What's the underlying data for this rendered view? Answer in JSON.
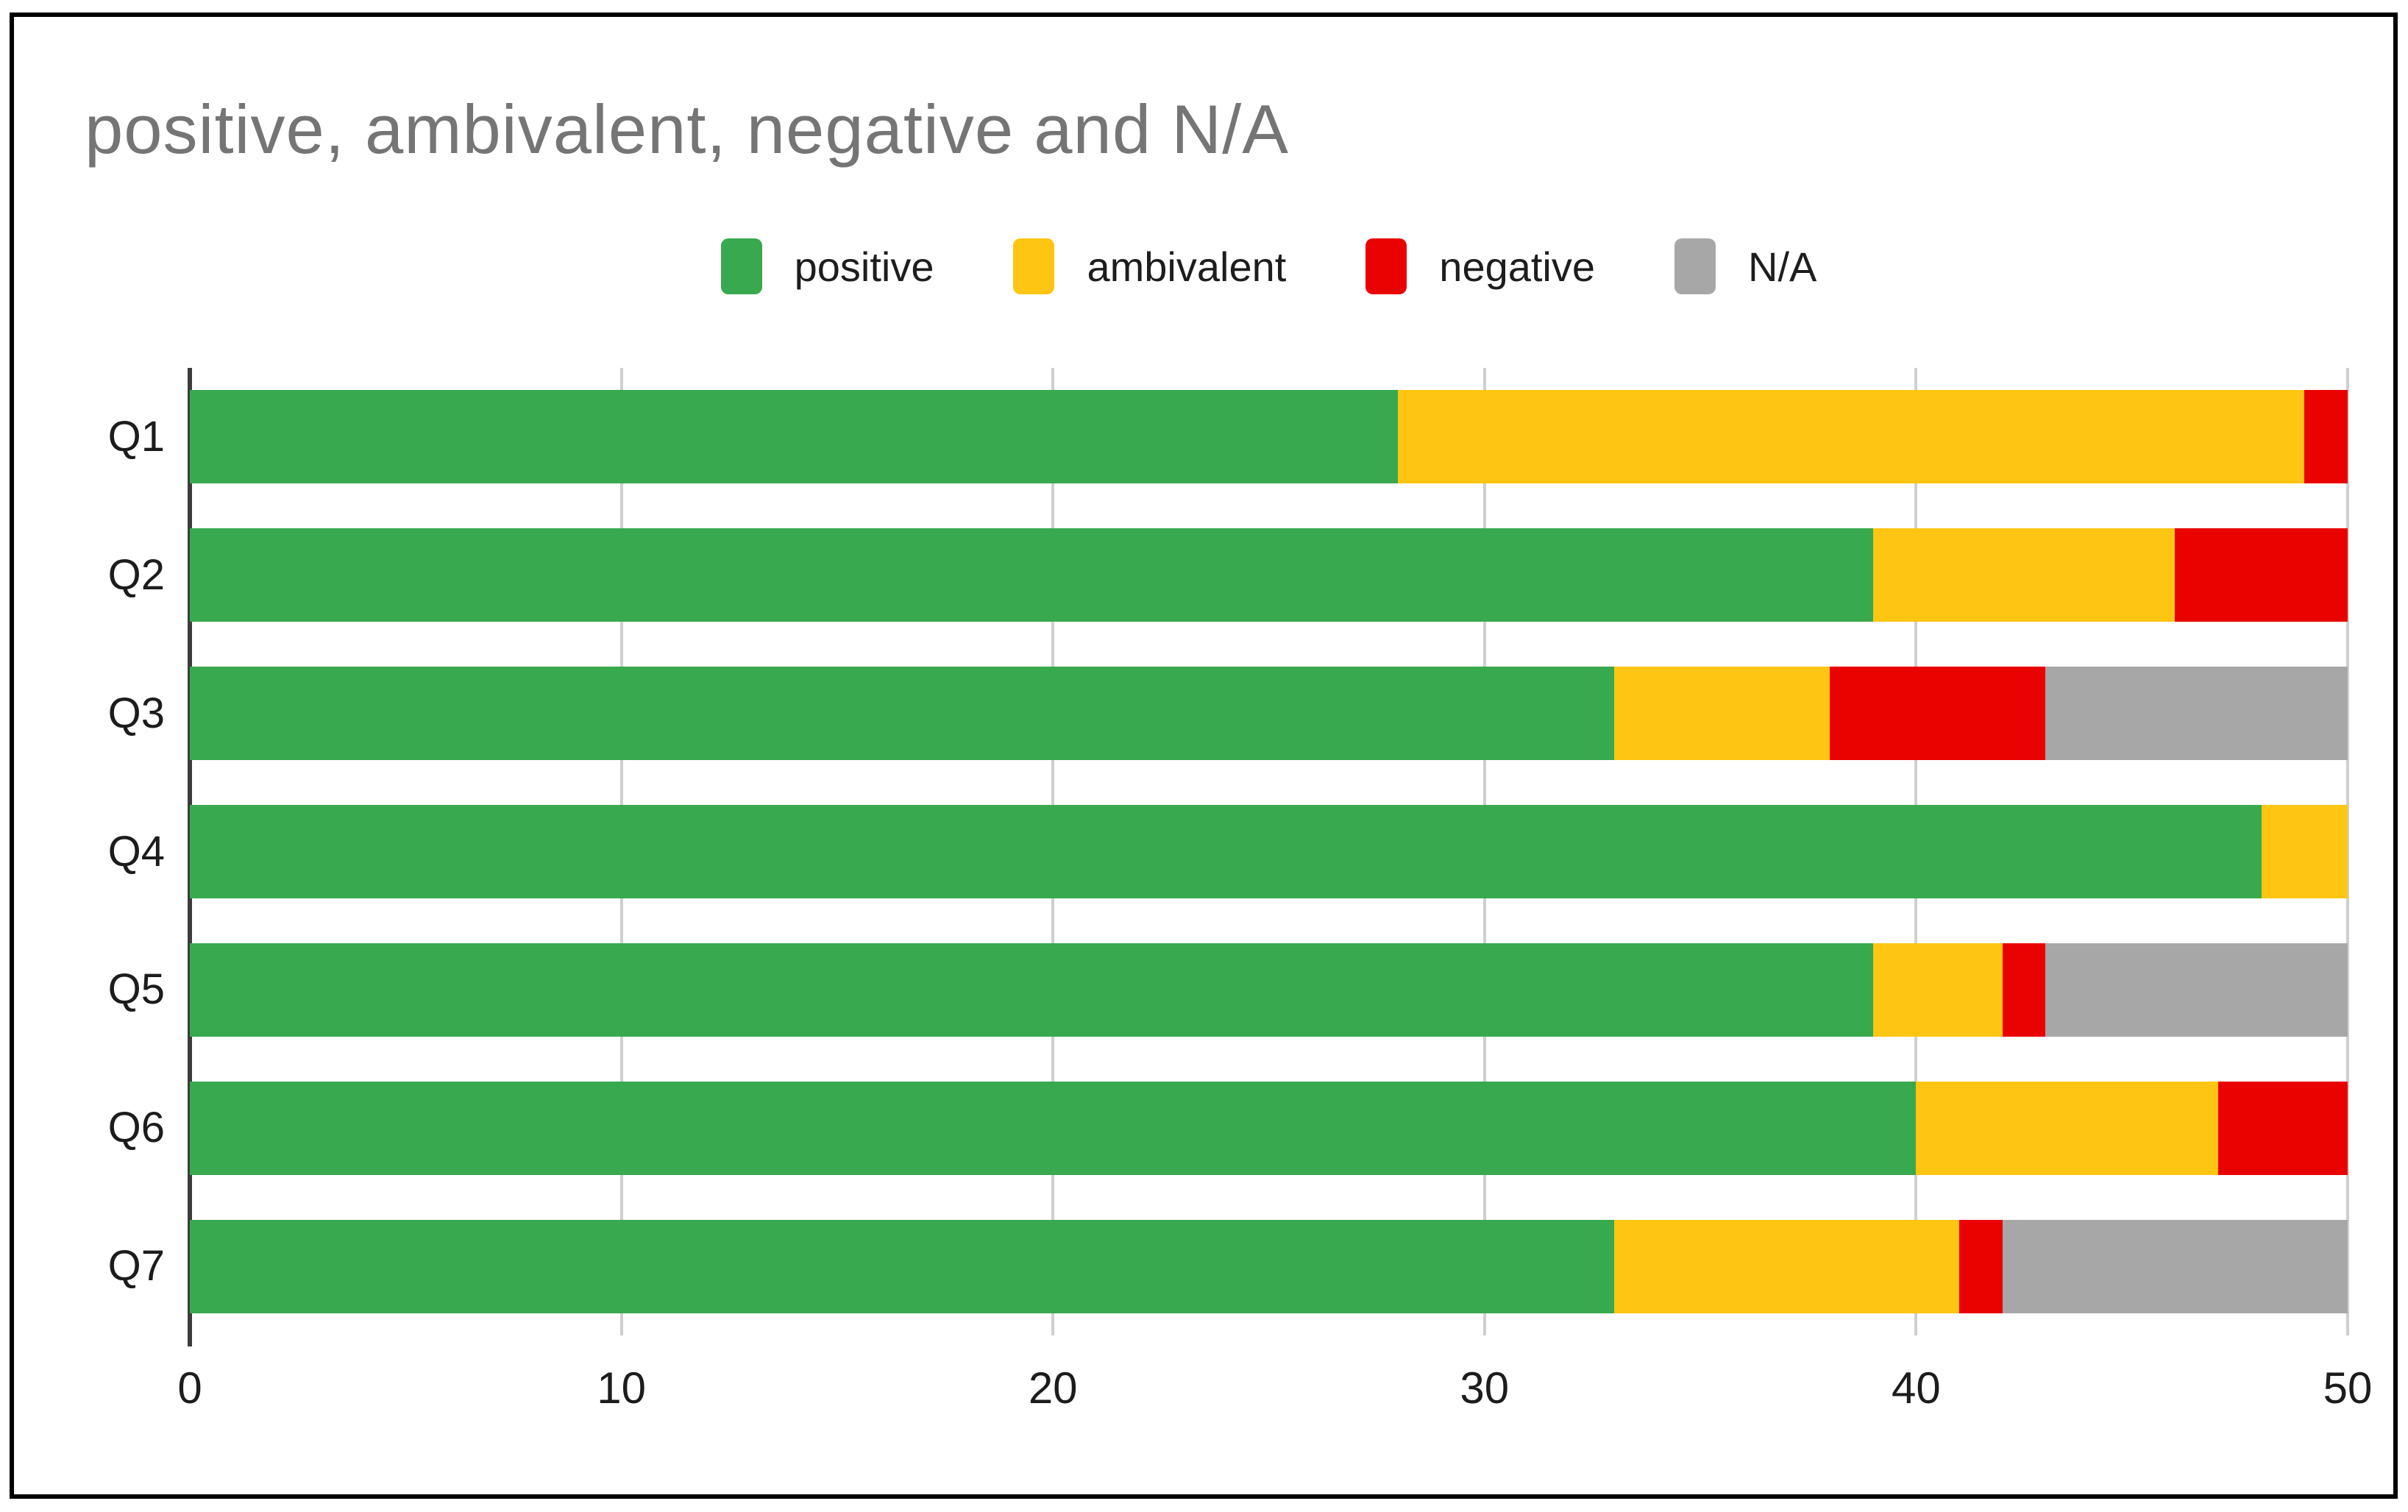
{
  "title": "positive, ambivalent, negative and N/A",
  "colors": {
    "positive": "#38a94e",
    "ambivalent": "#fec512",
    "negative": "#ea0201",
    "na": "#a7a7a7",
    "title_text": "#757575",
    "axis_text": "#1c1c1c",
    "gridline": "#cfcfcf",
    "axis_line": "#3c3c3c"
  },
  "legend": {
    "items": [
      "positive",
      "ambivalent",
      "negative",
      "N/A"
    ]
  },
  "x_axis": {
    "tick_labels": [
      "0",
      "10",
      "20",
      "30",
      "40",
      "50"
    ]
  },
  "chart_data": {
    "type": "bar",
    "orientation": "horizontal",
    "stacked": true,
    "title": "positive, ambivalent, negative and N/A",
    "xlabel": "",
    "ylabel": "",
    "xlim": [
      0,
      50
    ],
    "x_ticks": [
      0,
      10,
      20,
      30,
      40,
      50
    ],
    "grid": true,
    "legend_position": "top",
    "categories": [
      "Q1",
      "Q2",
      "Q3",
      "Q4",
      "Q5",
      "Q6",
      "Q7"
    ],
    "series": [
      {
        "name": "positive",
        "color": "#38a94e",
        "values": [
          28,
          39,
          33,
          48,
          39,
          40,
          33
        ]
      },
      {
        "name": "ambivalent",
        "color": "#fec512",
        "values": [
          21,
          7,
          5,
          2,
          3,
          7,
          8
        ]
      },
      {
        "name": "negative",
        "color": "#ea0201",
        "values": [
          1,
          4,
          5,
          0,
          1,
          3,
          1
        ]
      },
      {
        "name": "N/A",
        "color": "#a7a7a7",
        "values": [
          0,
          0,
          7,
          0,
          7,
          0,
          8
        ]
      }
    ]
  }
}
